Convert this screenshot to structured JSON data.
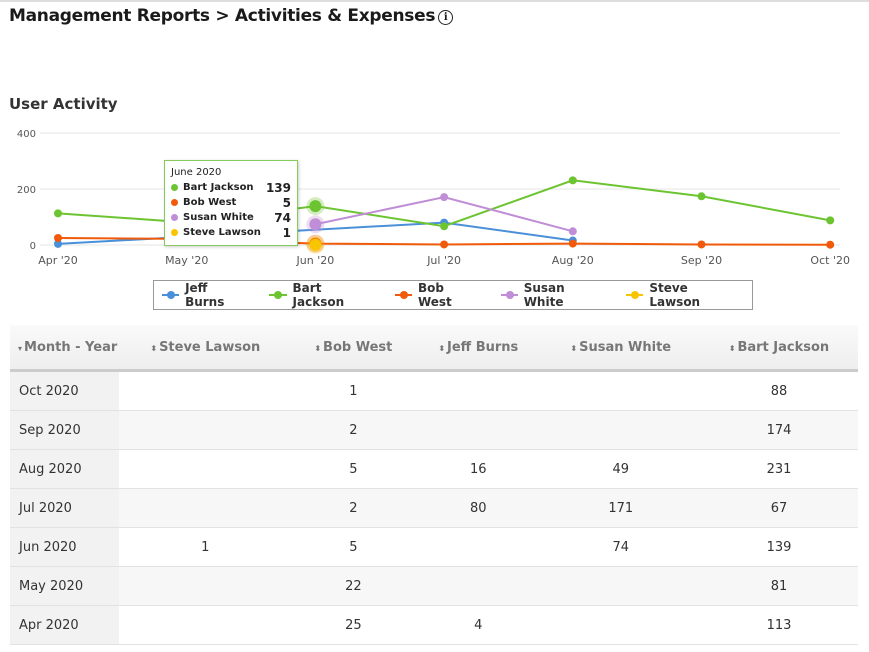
{
  "header": {
    "title": "Management Reports > Activities & Expenses",
    "info_icon": "info-circle-icon"
  },
  "chart_title": "User Activity",
  "chart_data": {
    "type": "line",
    "categories": [
      "Apr '20",
      "May '20",
      "Jun '20",
      "Jul '20",
      "Aug '20",
      "Sep '20",
      "Oct '20"
    ],
    "yticks": [
      0,
      200,
      400
    ],
    "ylim": [
      0,
      400
    ],
    "grid": true,
    "legend_placement": "bottom",
    "series": [
      {
        "name": "Jeff Burns",
        "color": "#4a90d9",
        "values": [
          4,
          null,
          null,
          80,
          16,
          null,
          null
        ]
      },
      {
        "name": "Bart Jackson",
        "color": "#6cc431",
        "values": [
          113,
          81,
          139,
          67,
          231,
          174,
          88
        ]
      },
      {
        "name": "Bob West",
        "color": "#f05a0a",
        "values": [
          25,
          22,
          5,
          2,
          5,
          2,
          1
        ]
      },
      {
        "name": "Susan White",
        "color": "#c08ed6",
        "values": [
          null,
          null,
          74,
          171,
          49,
          null,
          null
        ]
      },
      {
        "name": "Steve Lawson",
        "color": "#f7c600",
        "values": [
          null,
          null,
          1,
          null,
          null,
          null,
          null
        ]
      }
    ],
    "tooltip": {
      "title": "June 2020",
      "items": [
        {
          "name": "Bart Jackson",
          "value": "139",
          "color": "#6cc431"
        },
        {
          "name": "Bob West",
          "value": "5",
          "color": "#f05a0a"
        },
        {
          "name": "Susan White",
          "value": "74",
          "color": "#c08ed6"
        },
        {
          "name": "Steve Lawson",
          "value": "1",
          "color": "#f7c600"
        }
      ]
    }
  },
  "table": {
    "columns": [
      "Month - Year",
      "Steve Lawson",
      "Bob West",
      "Jeff Burns",
      "Susan White",
      "Bart Jackson"
    ],
    "rows": [
      [
        "Oct 2020",
        "",
        "1",
        "",
        "",
        "88"
      ],
      [
        "Sep 2020",
        "",
        "2",
        "",
        "",
        "174"
      ],
      [
        "Aug 2020",
        "",
        "5",
        "16",
        "49",
        "231"
      ],
      [
        "Jul 2020",
        "",
        "2",
        "80",
        "171",
        "67"
      ],
      [
        "Jun 2020",
        "1",
        "5",
        "",
        "74",
        "139"
      ],
      [
        "May 2020",
        "",
        "22",
        "",
        "",
        "81"
      ],
      [
        "Apr 2020",
        "",
        "25",
        "4",
        "",
        "113"
      ]
    ]
  }
}
